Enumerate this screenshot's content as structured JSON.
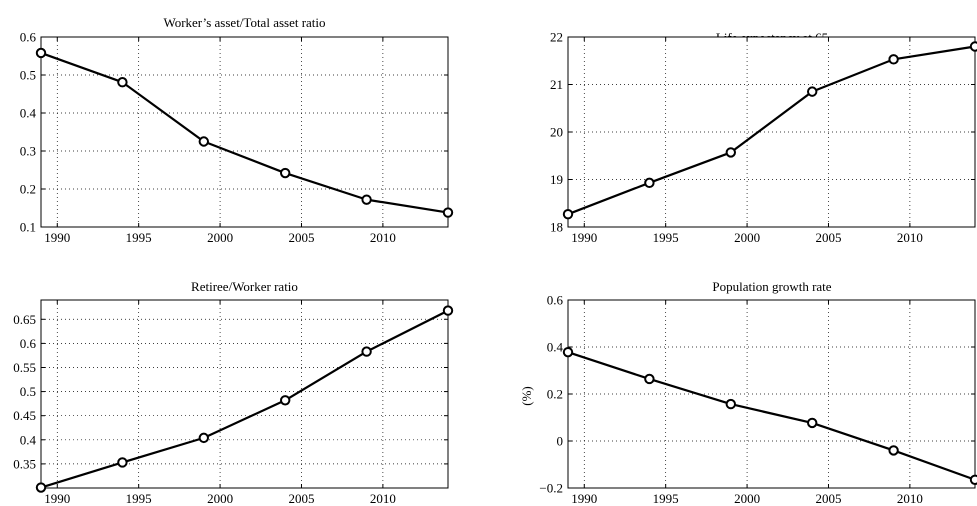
{
  "chart_data": [
    {
      "id": "worker-asset-ratio",
      "type": "line",
      "title": "Worker’s asset/Total asset ratio",
      "ylabel": "",
      "x": [
        1989,
        1994,
        1999,
        2004,
        2009,
        2014
      ],
      "values": [
        0.558,
        0.481,
        0.325,
        0.242,
        0.172,
        0.138
      ],
      "xlim": [
        1989,
        2014
      ],
      "ylim": [
        0.1,
        0.6
      ],
      "xticks": [
        1990,
        1995,
        2000,
        2005,
        2010
      ],
      "yticks": [
        0.1,
        0.2,
        0.3,
        0.4,
        0.5,
        0.6
      ],
      "xtick_labels": [
        "1990",
        "1995",
        "2000",
        "2005",
        "2010"
      ],
      "ytick_labels": [
        "0.1",
        "0.2",
        "0.3",
        "0.4",
        "0.5",
        "0.6"
      ],
      "grid": true,
      "marker": "circle"
    },
    {
      "id": "life-expectancy",
      "type": "line",
      "title": "Life expectancy at 65",
      "ylabel": "",
      "x": [
        1989,
        1994,
        1999,
        2004,
        2009,
        2014
      ],
      "values": [
        18.27,
        18.93,
        19.57,
        20.85,
        21.53,
        21.8
      ],
      "xlim": [
        1989,
        2014
      ],
      "ylim": [
        18,
        22
      ],
      "xticks": [
        1990,
        1995,
        2000,
        2005,
        2010
      ],
      "yticks": [
        18,
        19,
        20,
        21,
        22
      ],
      "xtick_labels": [
        "1990",
        "1995",
        "2000",
        "2005",
        "2010"
      ],
      "ytick_labels": [
        "18",
        "19",
        "20",
        "21",
        "22"
      ],
      "grid": true,
      "marker": "circle"
    },
    {
      "id": "retiree-worker-ratio",
      "type": "line",
      "title": "Retiree/Worker ratio",
      "ylabel": "",
      "x": [
        1989,
        1994,
        1999,
        2004,
        2009,
        2014
      ],
      "values": [
        0.301,
        0.353,
        0.404,
        0.482,
        0.583,
        0.668
      ],
      "xlim": [
        1989,
        2014
      ],
      "ylim": [
        0.3,
        0.69
      ],
      "xticks": [
        1990,
        1995,
        2000,
        2005,
        2010
      ],
      "yticks": [
        0.35,
        0.4,
        0.45,
        0.5,
        0.55,
        0.6,
        0.65
      ],
      "xtick_labels": [
        "1990",
        "1995",
        "2000",
        "2005",
        "2010"
      ],
      "ytick_labels": [
        "0.35",
        "0.4",
        "0.45",
        "0.5",
        "0.55",
        "0.6",
        "0.65"
      ],
      "grid": true,
      "marker": "circle"
    },
    {
      "id": "population-growth",
      "type": "line",
      "title": "Population growth rate",
      "ylabel": "(%)",
      "x": [
        1989,
        1994,
        1999,
        2004,
        2009,
        2014
      ],
      "values": [
        0.378,
        0.264,
        0.157,
        0.077,
        -0.04,
        -0.165
      ],
      "xlim": [
        1989,
        2014
      ],
      "ylim": [
        -0.2,
        0.6
      ],
      "xticks": [
        1990,
        1995,
        2000,
        2005,
        2010
      ],
      "yticks": [
        -0.2,
        0,
        0.2,
        0.4,
        0.6
      ],
      "xtick_labels": [
        "1990",
        "1995",
        "2000",
        "2005",
        "2010"
      ],
      "ytick_labels": [
        "−0.2",
        "0",
        "0.2",
        "0.4",
        "0.6"
      ],
      "grid": true,
      "marker": "circle"
    }
  ]
}
